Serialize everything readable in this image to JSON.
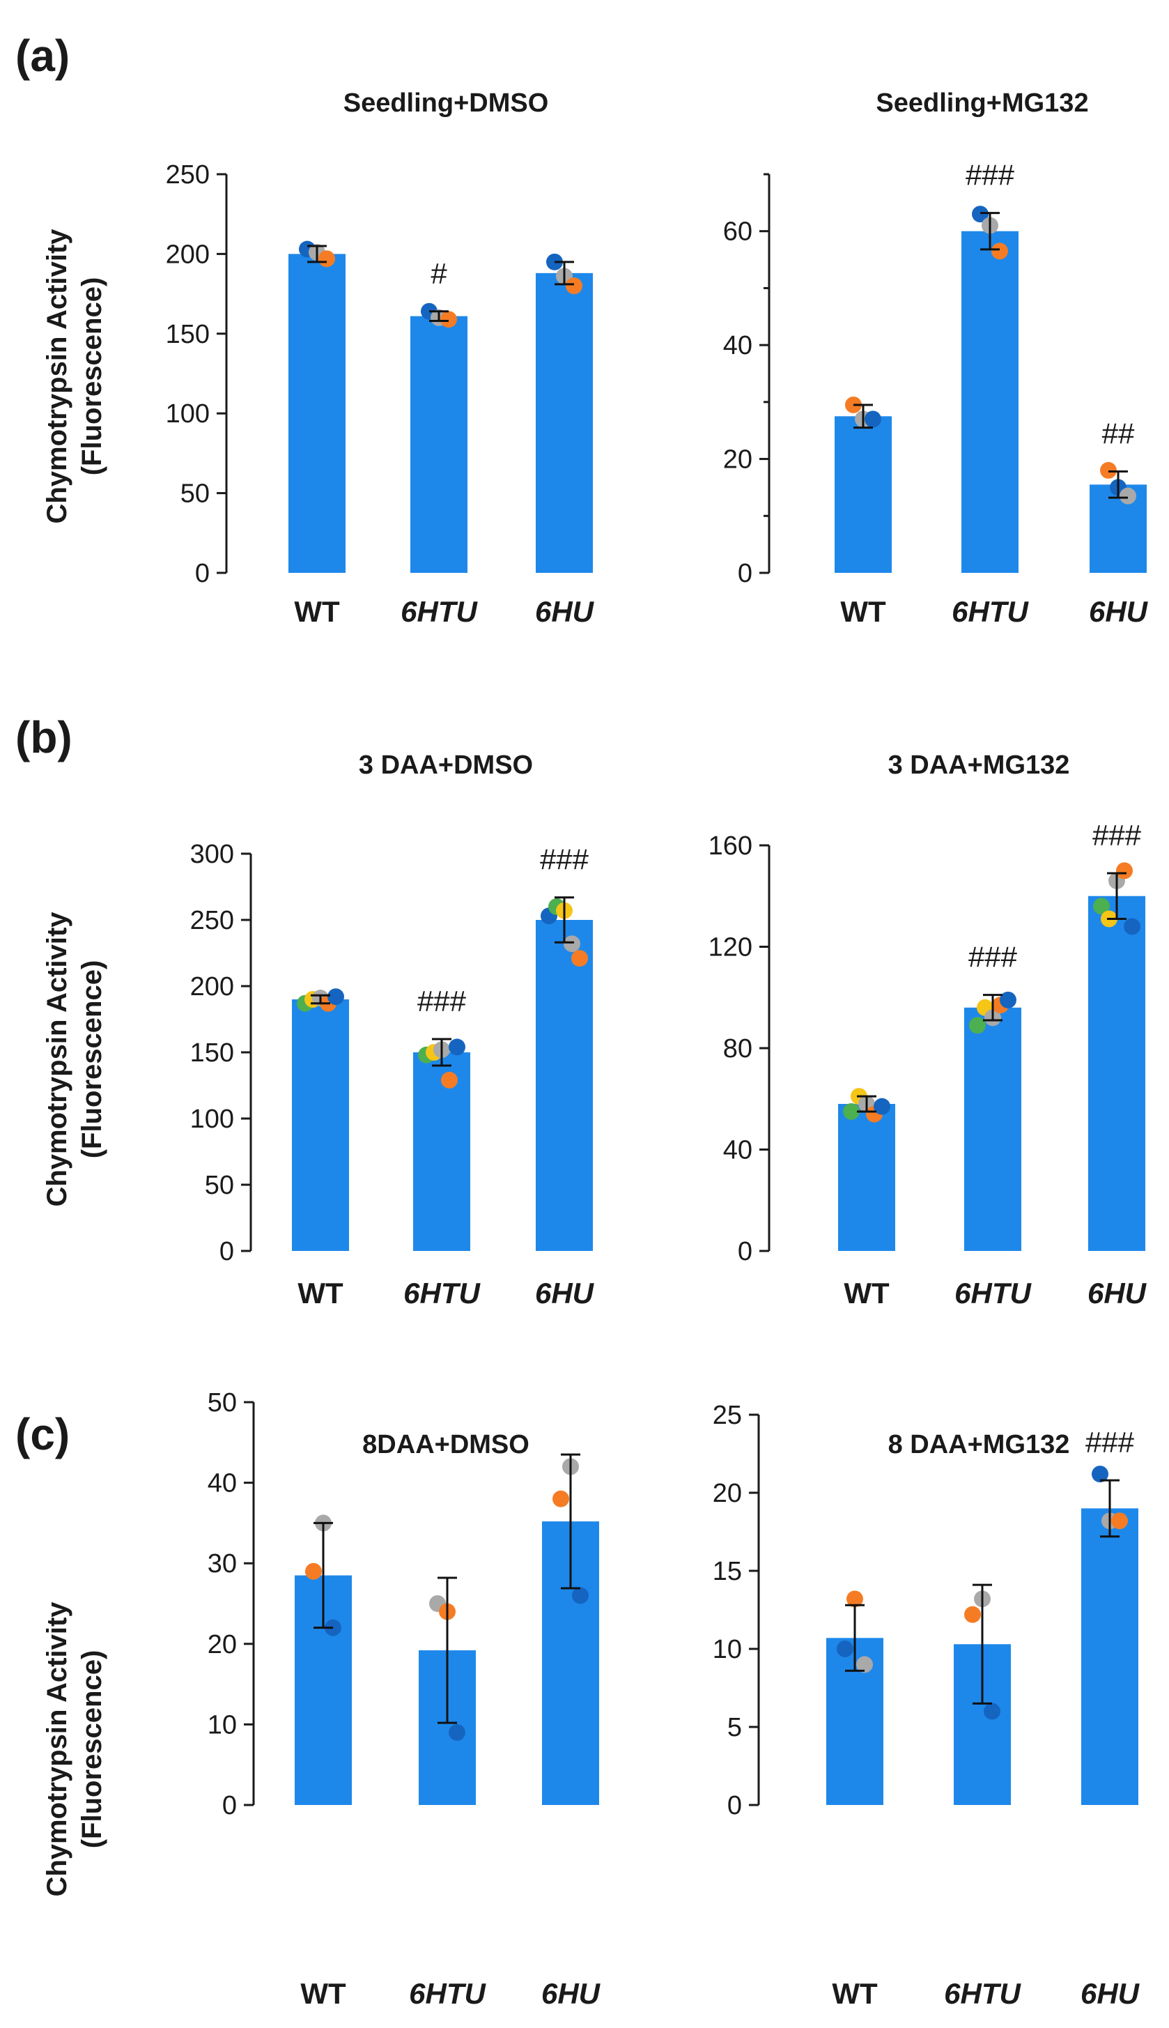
{
  "figure": {
    "panels": [
      {
        "label": "(a)",
        "ylabel_line1": "Chymotrypsin Activity",
        "ylabel_line2": "(Fluorescence)"
      },
      {
        "label": "(b)",
        "ylabel_line1": "Chymotrypsin Activity",
        "ylabel_line2": "(Fluorescence)"
      },
      {
        "label": "(c)",
        "ylabel_line1": "Chymotrypsin Activity",
        "ylabel_line2": "(Fluorescence)"
      }
    ]
  },
  "colors": {
    "bar": "#1e88ea",
    "axis": "#1a1a1a",
    "dot_blue": "#1565c0",
    "dot_gray": "#a9a9a9",
    "dot_orange": "#f57c24",
    "dot_green": "#4caf50",
    "dot_yellow": "#f5c518"
  },
  "chart_data": [
    {
      "id": "a-left",
      "panel": "(a)",
      "type": "bar",
      "title": "Seedling+DMSO",
      "xlabel": "",
      "ylabel": "Chymotrypsin Activity (Fluorescence)",
      "categories": [
        "WT",
        "6HTU",
        "6HU"
      ],
      "category_italic": [
        false,
        true,
        true
      ],
      "ylim": [
        0,
        250
      ],
      "yticks": [
        0,
        50,
        100,
        150,
        200,
        250
      ],
      "values": [
        200,
        161,
        188
      ],
      "errors": [
        5,
        3,
        7
      ],
      "significance": [
        "",
        "#",
        ""
      ],
      "points": [
        [
          {
            "v": 203,
            "c": "dot_blue"
          },
          {
            "v": 201,
            "c": "dot_gray"
          },
          {
            "v": 197,
            "c": "dot_orange"
          }
        ],
        [
          {
            "v": 164,
            "c": "dot_blue"
          },
          {
            "v": 160,
            "c": "dot_gray"
          },
          {
            "v": 159,
            "c": "dot_orange"
          }
        ],
        [
          {
            "v": 195,
            "c": "dot_blue"
          },
          {
            "v": 186,
            "c": "dot_gray"
          },
          {
            "v": 180,
            "c": "dot_orange"
          }
        ]
      ]
    },
    {
      "id": "a-right",
      "panel": "(a)",
      "type": "bar",
      "title": "Seedling+MG132",
      "xlabel": "",
      "ylabel": "",
      "categories": [
        "WT",
        "6HTU",
        "6HU"
      ],
      "category_italic": [
        false,
        true,
        true
      ],
      "ylim": [
        0,
        70
      ],
      "yticks": [
        0,
        20,
        40,
        60
      ],
      "minor_yticks": [
        10,
        30,
        50,
        70
      ],
      "values": [
        27.5,
        60,
        15.5
      ],
      "errors": [
        2,
        3.2,
        2.3
      ],
      "significance": [
        "",
        "###",
        "##"
      ],
      "points": [
        [
          {
            "v": 29.5,
            "c": "dot_orange"
          },
          {
            "v": 27,
            "c": "dot_gray"
          },
          {
            "v": 27,
            "c": "dot_blue"
          }
        ],
        [
          {
            "v": 63,
            "c": "dot_blue"
          },
          {
            "v": 61,
            "c": "dot_gray"
          },
          {
            "v": 56.5,
            "c": "dot_orange"
          }
        ],
        [
          {
            "v": 18,
            "c": "dot_orange"
          },
          {
            "v": 15,
            "c": "dot_blue"
          },
          {
            "v": 13.5,
            "c": "dot_gray"
          }
        ]
      ]
    },
    {
      "id": "b-left",
      "panel": "(b)",
      "type": "bar",
      "title": "3 DAA+DMSO",
      "xlabel": "",
      "ylabel": "Chymotrypsin Activity (Fluorescence)",
      "categories": [
        "WT",
        "6HTU",
        "6HU"
      ],
      "category_italic": [
        false,
        true,
        true
      ],
      "ylim": [
        0,
        300
      ],
      "yticks": [
        0,
        50,
        100,
        150,
        200,
        250,
        300
      ],
      "values": [
        190,
        150,
        250
      ],
      "errors": [
        3,
        10,
        17
      ],
      "significance": [
        "",
        "###",
        "###"
      ],
      "points": [
        [
          {
            "v": 187,
            "c": "dot_green"
          },
          {
            "v": 190,
            "c": "dot_yellow"
          },
          {
            "v": 191,
            "c": "dot_gray"
          },
          {
            "v": 187,
            "c": "dot_orange"
          },
          {
            "v": 192,
            "c": "dot_blue"
          }
        ],
        [
          {
            "v": 148,
            "c": "dot_green"
          },
          {
            "v": 150,
            "c": "dot_yellow"
          },
          {
            "v": 152,
            "c": "dot_gray"
          },
          {
            "v": 129,
            "c": "dot_orange"
          },
          {
            "v": 154,
            "c": "dot_blue"
          }
        ],
        [
          {
            "v": 253,
            "c": "dot_blue"
          },
          {
            "v": 260,
            "c": "dot_green"
          },
          {
            "v": 257,
            "c": "dot_yellow"
          },
          {
            "v": 232,
            "c": "dot_gray"
          },
          {
            "v": 221,
            "c": "dot_orange"
          }
        ]
      ]
    },
    {
      "id": "b-right",
      "panel": "(b)",
      "type": "bar",
      "title": "3 DAA+MG132",
      "xlabel": "",
      "ylabel": "",
      "categories": [
        "WT",
        "6HTU",
        "6HU"
      ],
      "category_italic": [
        false,
        true,
        true
      ],
      "ylim": [
        0,
        160
      ],
      "yticks": [
        0,
        40,
        80,
        120,
        160
      ],
      "values": [
        58,
        96,
        140
      ],
      "errors": [
        3,
        5,
        9
      ],
      "significance": [
        "",
        "###",
        "###"
      ],
      "points": [
        [
          {
            "v": 55,
            "c": "dot_green"
          },
          {
            "v": 61,
            "c": "dot_yellow"
          },
          {
            "v": 58,
            "c": "dot_gray"
          },
          {
            "v": 54,
            "c": "dot_orange"
          },
          {
            "v": 57,
            "c": "dot_blue"
          }
        ],
        [
          {
            "v": 89,
            "c": "dot_green"
          },
          {
            "v": 96,
            "c": "dot_yellow"
          },
          {
            "v": 92,
            "c": "dot_gray"
          },
          {
            "v": 97,
            "c": "dot_orange"
          },
          {
            "v": 99,
            "c": "dot_blue"
          }
        ],
        [
          {
            "v": 136,
            "c": "dot_green"
          },
          {
            "v": 131,
            "c": "dot_yellow"
          },
          {
            "v": 146,
            "c": "dot_gray"
          },
          {
            "v": 150,
            "c": "dot_orange"
          },
          {
            "v": 128,
            "c": "dot_blue"
          }
        ]
      ]
    },
    {
      "id": "c-left",
      "panel": "(c)",
      "type": "bar",
      "title": "8DAA+DMSO",
      "xlabel": "",
      "ylabel": "Chymotrypsin Activity (Fluorescence)",
      "categories": [
        "WT",
        "6HTU",
        "6HU"
      ],
      "category_italic": [
        false,
        true,
        true
      ],
      "ylim": [
        0,
        50
      ],
      "yticks": [
        0,
        10,
        20,
        30,
        40,
        50
      ],
      "values": [
        28.5,
        19.2,
        35.2
      ],
      "errors": [
        6.5,
        9,
        8.3
      ],
      "significance": [
        "",
        "",
        ""
      ],
      "points": [
        [
          {
            "v": 29,
            "c": "dot_orange"
          },
          {
            "v": 35,
            "c": "dot_gray"
          },
          {
            "v": 22,
            "c": "dot_blue"
          }
        ],
        [
          {
            "v": 25,
            "c": "dot_gray"
          },
          {
            "v": 24,
            "c": "dot_orange"
          },
          {
            "v": 9,
            "c": "dot_blue"
          }
        ],
        [
          {
            "v": 38,
            "c": "dot_orange"
          },
          {
            "v": 42,
            "c": "dot_gray"
          },
          {
            "v": 26,
            "c": "dot_blue"
          }
        ]
      ]
    },
    {
      "id": "c-right",
      "panel": "(c)",
      "type": "bar",
      "title": "8 DAA+MG132",
      "xlabel": "",
      "ylabel": "",
      "categories": [
        "WT",
        "6HTU",
        "6HU"
      ],
      "category_italic": [
        false,
        true,
        true
      ],
      "ylim": [
        0,
        25
      ],
      "yticks": [
        0,
        5,
        10,
        15,
        20,
        25
      ],
      "values": [
        10.7,
        10.3,
        19
      ],
      "errors": [
        2.1,
        3.8,
        1.8
      ],
      "significance": [
        "",
        "",
        "###"
      ],
      "points": [
        [
          {
            "v": 10,
            "c": "dot_blue"
          },
          {
            "v": 13.2,
            "c": "dot_orange"
          },
          {
            "v": 9,
            "c": "dot_gray"
          }
        ],
        [
          {
            "v": 12.2,
            "c": "dot_orange"
          },
          {
            "v": 13.2,
            "c": "dot_gray"
          },
          {
            "v": 6,
            "c": "dot_blue"
          }
        ],
        [
          {
            "v": 21.2,
            "c": "dot_blue"
          },
          {
            "v": 18.2,
            "c": "dot_gray"
          },
          {
            "v": 18.2,
            "c": "dot_orange"
          }
        ]
      ]
    }
  ]
}
